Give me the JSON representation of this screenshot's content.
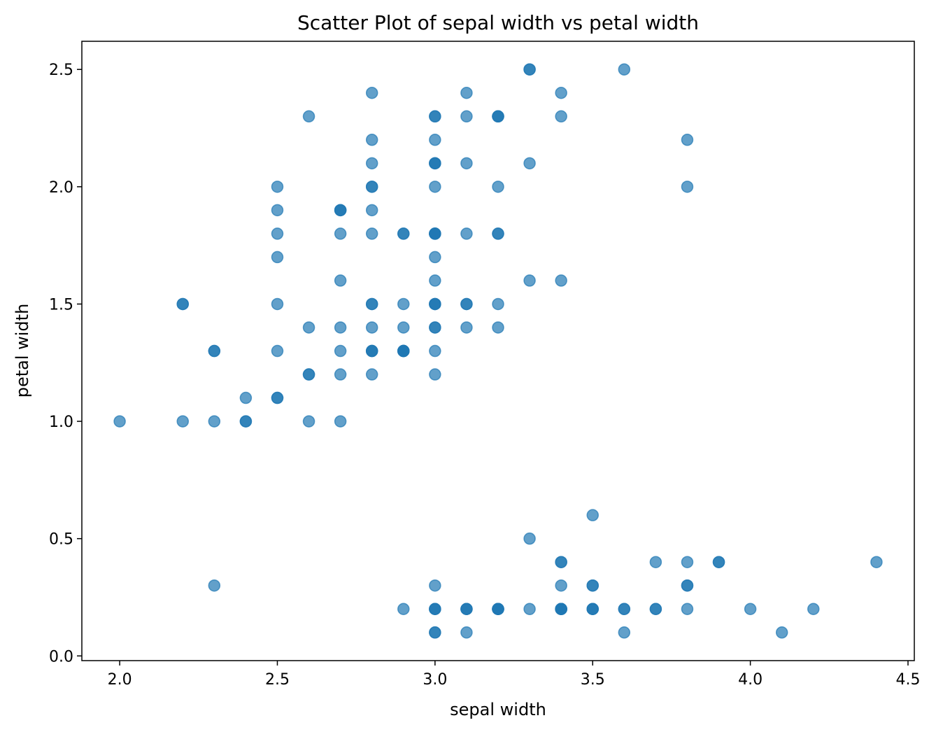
{
  "chart_data": {
    "type": "scatter",
    "title": "Scatter Plot of sepal width vs petal width",
    "xlabel": "sepal width",
    "ylabel": "petal width",
    "xlim": [
      1.88,
      4.52
    ],
    "ylim": [
      -0.02,
      2.62
    ],
    "xticks": [
      "2.0",
      "2.5",
      "3.0",
      "3.5",
      "4.0",
      "4.5"
    ],
    "yticks": [
      "0.0",
      "0.5",
      "1.0",
      "1.5",
      "2.0",
      "2.5"
    ],
    "grid": false,
    "marker_color": "#1f77b4",
    "marker_alpha": 0.7,
    "points": [
      [
        3.5,
        0.2
      ],
      [
        3.0,
        0.2
      ],
      [
        3.2,
        0.2
      ],
      [
        3.1,
        0.2
      ],
      [
        3.6,
        0.2
      ],
      [
        3.9,
        0.4
      ],
      [
        3.4,
        0.3
      ],
      [
        3.4,
        0.2
      ],
      [
        2.9,
        0.2
      ],
      [
        3.1,
        0.1
      ],
      [
        3.7,
        0.2
      ],
      [
        3.4,
        0.2
      ],
      [
        3.0,
        0.1
      ],
      [
        3.0,
        0.1
      ],
      [
        4.0,
        0.2
      ],
      [
        4.4,
        0.4
      ],
      [
        3.9,
        0.4
      ],
      [
        3.5,
        0.3
      ],
      [
        3.8,
        0.3
      ],
      [
        3.8,
        0.3
      ],
      [
        3.4,
        0.2
      ],
      [
        3.7,
        0.4
      ],
      [
        3.6,
        0.2
      ],
      [
        3.3,
        0.5
      ],
      [
        3.4,
        0.2
      ],
      [
        3.0,
        0.2
      ],
      [
        3.4,
        0.4
      ],
      [
        3.5,
        0.2
      ],
      [
        3.4,
        0.2
      ],
      [
        3.2,
        0.2
      ],
      [
        3.1,
        0.2
      ],
      [
        3.4,
        0.4
      ],
      [
        4.1,
        0.1
      ],
      [
        4.2,
        0.2
      ],
      [
        3.1,
        0.2
      ],
      [
        3.2,
        0.2
      ],
      [
        3.5,
        0.2
      ],
      [
        3.6,
        0.1
      ],
      [
        3.0,
        0.2
      ],
      [
        3.4,
        0.2
      ],
      [
        3.5,
        0.3
      ],
      [
        2.3,
        0.3
      ],
      [
        3.2,
        0.2
      ],
      [
        3.5,
        0.6
      ],
      [
        3.8,
        0.4
      ],
      [
        3.0,
        0.3
      ],
      [
        3.8,
        0.2
      ],
      [
        3.2,
        0.2
      ],
      [
        3.7,
        0.2
      ],
      [
        3.3,
        0.2
      ],
      [
        3.2,
        1.4
      ],
      [
        3.2,
        1.5
      ],
      [
        3.1,
        1.5
      ],
      [
        2.3,
        1.3
      ],
      [
        2.8,
        1.5
      ],
      [
        2.8,
        1.3
      ],
      [
        3.3,
        1.6
      ],
      [
        2.4,
        1.0
      ],
      [
        2.9,
        1.3
      ],
      [
        2.7,
        1.4
      ],
      [
        2.0,
        1.0
      ],
      [
        3.0,
        1.5
      ],
      [
        2.2,
        1.0
      ],
      [
        2.9,
        1.4
      ],
      [
        2.9,
        1.3
      ],
      [
        3.1,
        1.4
      ],
      [
        3.0,
        1.5
      ],
      [
        2.7,
        1.0
      ],
      [
        2.2,
        1.5
      ],
      [
        2.5,
        1.1
      ],
      [
        3.2,
        1.8
      ],
      [
        2.8,
        1.3
      ],
      [
        2.5,
        1.5
      ],
      [
        2.8,
        1.2
      ],
      [
        2.9,
        1.3
      ],
      [
        3.0,
        1.4
      ],
      [
        2.8,
        1.4
      ],
      [
        3.0,
        1.7
      ],
      [
        2.9,
        1.5
      ],
      [
        2.6,
        1.0
      ],
      [
        2.4,
        1.1
      ],
      [
        2.4,
        1.0
      ],
      [
        2.7,
        1.2
      ],
      [
        2.7,
        1.6
      ],
      [
        3.0,
        1.5
      ],
      [
        3.4,
        1.6
      ],
      [
        3.1,
        1.5
      ],
      [
        2.3,
        1.3
      ],
      [
        3.0,
        1.3
      ],
      [
        2.5,
        1.3
      ],
      [
        2.6,
        1.2
      ],
      [
        3.0,
        1.4
      ],
      [
        2.6,
        1.2
      ],
      [
        2.3,
        1.0
      ],
      [
        2.7,
        1.3
      ],
      [
        3.0,
        1.2
      ],
      [
        2.9,
        1.3
      ],
      [
        2.9,
        1.3
      ],
      [
        2.5,
        1.1
      ],
      [
        2.8,
        1.3
      ],
      [
        3.3,
        2.5
      ],
      [
        2.7,
        1.9
      ],
      [
        3.0,
        2.1
      ],
      [
        2.9,
        1.8
      ],
      [
        3.0,
        2.2
      ],
      [
        3.0,
        2.1
      ],
      [
        2.5,
        1.7
      ],
      [
        2.9,
        1.8
      ],
      [
        2.5,
        1.8
      ],
      [
        3.6,
        2.5
      ],
      [
        3.2,
        2.0
      ],
      [
        2.7,
        1.9
      ],
      [
        3.0,
        2.1
      ],
      [
        2.5,
        2.0
      ],
      [
        2.8,
        2.4
      ],
      [
        3.2,
        2.3
      ],
      [
        3.0,
        1.8
      ],
      [
        3.8,
        2.2
      ],
      [
        2.6,
        2.3
      ],
      [
        2.2,
        1.5
      ],
      [
        3.2,
        2.3
      ],
      [
        2.8,
        2.0
      ],
      [
        2.8,
        2.0
      ],
      [
        2.7,
        1.8
      ],
      [
        3.3,
        2.1
      ],
      [
        3.2,
        1.8
      ],
      [
        2.8,
        1.8
      ],
      [
        3.0,
        1.8
      ],
      [
        2.8,
        2.1
      ],
      [
        3.0,
        1.6
      ],
      [
        2.8,
        1.9
      ],
      [
        3.8,
        2.0
      ],
      [
        2.8,
        2.2
      ],
      [
        2.8,
        1.5
      ],
      [
        2.6,
        1.4
      ],
      [
        3.0,
        2.3
      ],
      [
        3.4,
        2.4
      ],
      [
        3.1,
        1.8
      ],
      [
        3.0,
        1.8
      ],
      [
        3.1,
        2.1
      ],
      [
        3.1,
        2.4
      ],
      [
        3.1,
        2.3
      ],
      [
        2.7,
        1.9
      ],
      [
        3.2,
        2.3
      ],
      [
        3.3,
        2.5
      ],
      [
        3.0,
        2.3
      ],
      [
        2.5,
        1.9
      ],
      [
        3.0,
        2.0
      ],
      [
        3.4,
        2.3
      ],
      [
        3.0,
        1.8
      ]
    ]
  }
}
